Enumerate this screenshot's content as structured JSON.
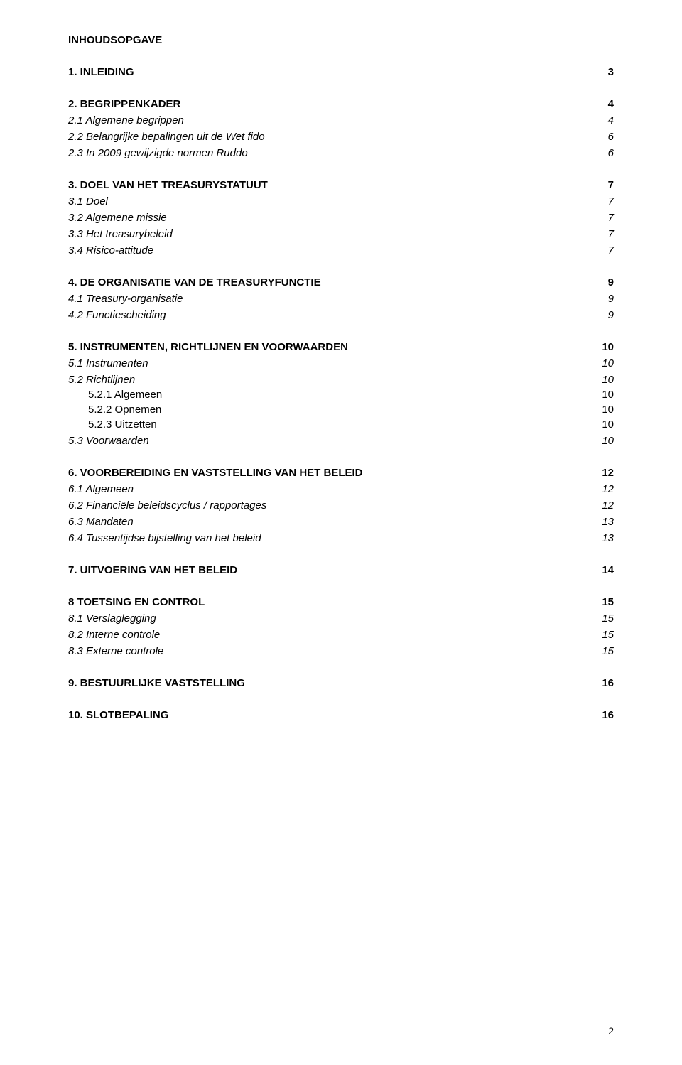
{
  "title": "INHOUDSOPGAVE",
  "page_number": "2",
  "colors": {
    "text": "#000000",
    "background": "#ffffff"
  },
  "typography": {
    "font_family": "Arial",
    "base_size_pt": 11,
    "bold_weight": 700,
    "italic_style": "italic"
  },
  "toc": [
    {
      "label": "1.  INLEIDING",
      "page": "3",
      "style": "head"
    },
    {
      "label": "2. BEGRIPPENKADER",
      "page": "4",
      "style": "head"
    },
    {
      "label": "2.1 Algemene begrippen",
      "page": "4",
      "style": "sub"
    },
    {
      "label": "2.2 Belangrijke bepalingen uit de Wet fido",
      "page": "6",
      "style": "sub"
    },
    {
      "label": "2.3 In 2009 gewijzigde normen Ruddo",
      "page": "6",
      "style": "sub"
    },
    {
      "label": "3. DOEL VAN HET TREASURYSTATUUT",
      "page": "7",
      "style": "head"
    },
    {
      "label": "3.1 Doel",
      "page": "7",
      "style": "sub"
    },
    {
      "label": "3.2 Algemene missie",
      "page": "7",
      "style": "sub"
    },
    {
      "label": "3.3 Het treasurybeleid",
      "page": "7",
      "style": "sub"
    },
    {
      "label": "3.4 Risico-attitude",
      "page": "7",
      "style": "sub"
    },
    {
      "label": "4. DE ORGANISATIE VAN DE TREASURYFUNCTIE",
      "page": "9",
      "style": "head"
    },
    {
      "label": "4.1 Treasury-organisatie",
      "page": "9",
      "style": "sub"
    },
    {
      "label": "4.2 Functiescheiding",
      "page": "9",
      "style": "sub"
    },
    {
      "label": "5. INSTRUMENTEN, RICHTLIJNEN EN VOORWAARDEN",
      "page": "10",
      "style": "head"
    },
    {
      "label": "5.1 Instrumenten",
      "page": "10",
      "style": "sub"
    },
    {
      "label": "5.2 Richtlijnen",
      "page": "10",
      "style": "sub"
    },
    {
      "label": "5.2.1 Algemeen",
      "page": "10",
      "style": "subsub"
    },
    {
      "label": "5.2.2 Opnemen",
      "page": "10",
      "style": "subsub"
    },
    {
      "label": "5.2.3 Uitzetten",
      "page": "10",
      "style": "subsub"
    },
    {
      "label": "5.3 Voorwaarden",
      "page": "10",
      "style": "sub"
    },
    {
      "label": "6. VOORBEREIDING EN VASTSTELLING VAN HET BELEID",
      "page": "12",
      "style": "head"
    },
    {
      "label": "6.1 Algemeen",
      "page": "12",
      "style": "sub"
    },
    {
      "label": "6.2 Financiële beleidscyclus / rapportages",
      "page": "12",
      "style": "sub"
    },
    {
      "label": "6.3 Mandaten",
      "page": "13",
      "style": "sub"
    },
    {
      "label": "6.4 Tussentijdse bijstelling van het beleid",
      "page": "13",
      "style": "sub"
    },
    {
      "label": "7. UITVOERING VAN HET BELEID",
      "page": "14",
      "style": "head"
    },
    {
      "label": "8 TOETSING EN CONTROL",
      "page": "15",
      "style": "head"
    },
    {
      "label": "8.1 Verslaglegging",
      "page": "15",
      "style": "sub"
    },
    {
      "label": "8.2 Interne controle",
      "page": "15",
      "style": "sub"
    },
    {
      "label": "8.3 Externe controle",
      "page": "15",
      "style": "sub"
    },
    {
      "label": "9. BESTUURLIJKE VASTSTELLING",
      "page": "16",
      "style": "head"
    },
    {
      "label": "10. SLOTBEPALING",
      "page": "16",
      "style": "head"
    }
  ]
}
